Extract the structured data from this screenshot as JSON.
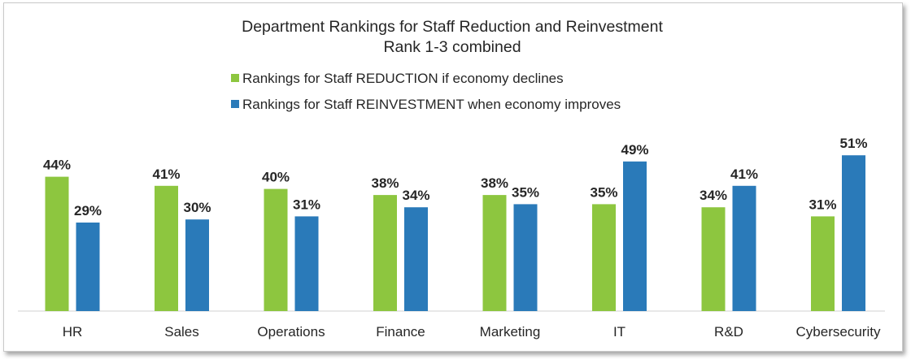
{
  "chart_data": {
    "type": "bar",
    "title": "Department Rankings for Staff Reduction and Reinvestment",
    "subtitle": "Rank 1-3 combined",
    "categories": [
      "HR",
      "Sales",
      "Operations",
      "Finance",
      "Marketing",
      "IT",
      "R&D",
      "Cybersecurity"
    ],
    "series": [
      {
        "name": "Rankings for Staff REDUCTION if economy declines",
        "color": "#8dc63f",
        "values": [
          44,
          41,
          40,
          38,
          38,
          35,
          34,
          31
        ],
        "labels": [
          "44%",
          "41%",
          "40%",
          "38%",
          "38%",
          "35%",
          "34%",
          "31%"
        ]
      },
      {
        "name": "Rankings for Staff REINVESTMENT when economy improves",
        "color": "#2a7ab9",
        "values": [
          29,
          30,
          31,
          34,
          35,
          49,
          41,
          51
        ],
        "labels": [
          "29%",
          "30%",
          "31%",
          "34%",
          "35%",
          "49%",
          "41%",
          "51%"
        ]
      }
    ],
    "ylim": [
      0,
      60
    ],
    "grid": false,
    "legend_position": "top"
  }
}
